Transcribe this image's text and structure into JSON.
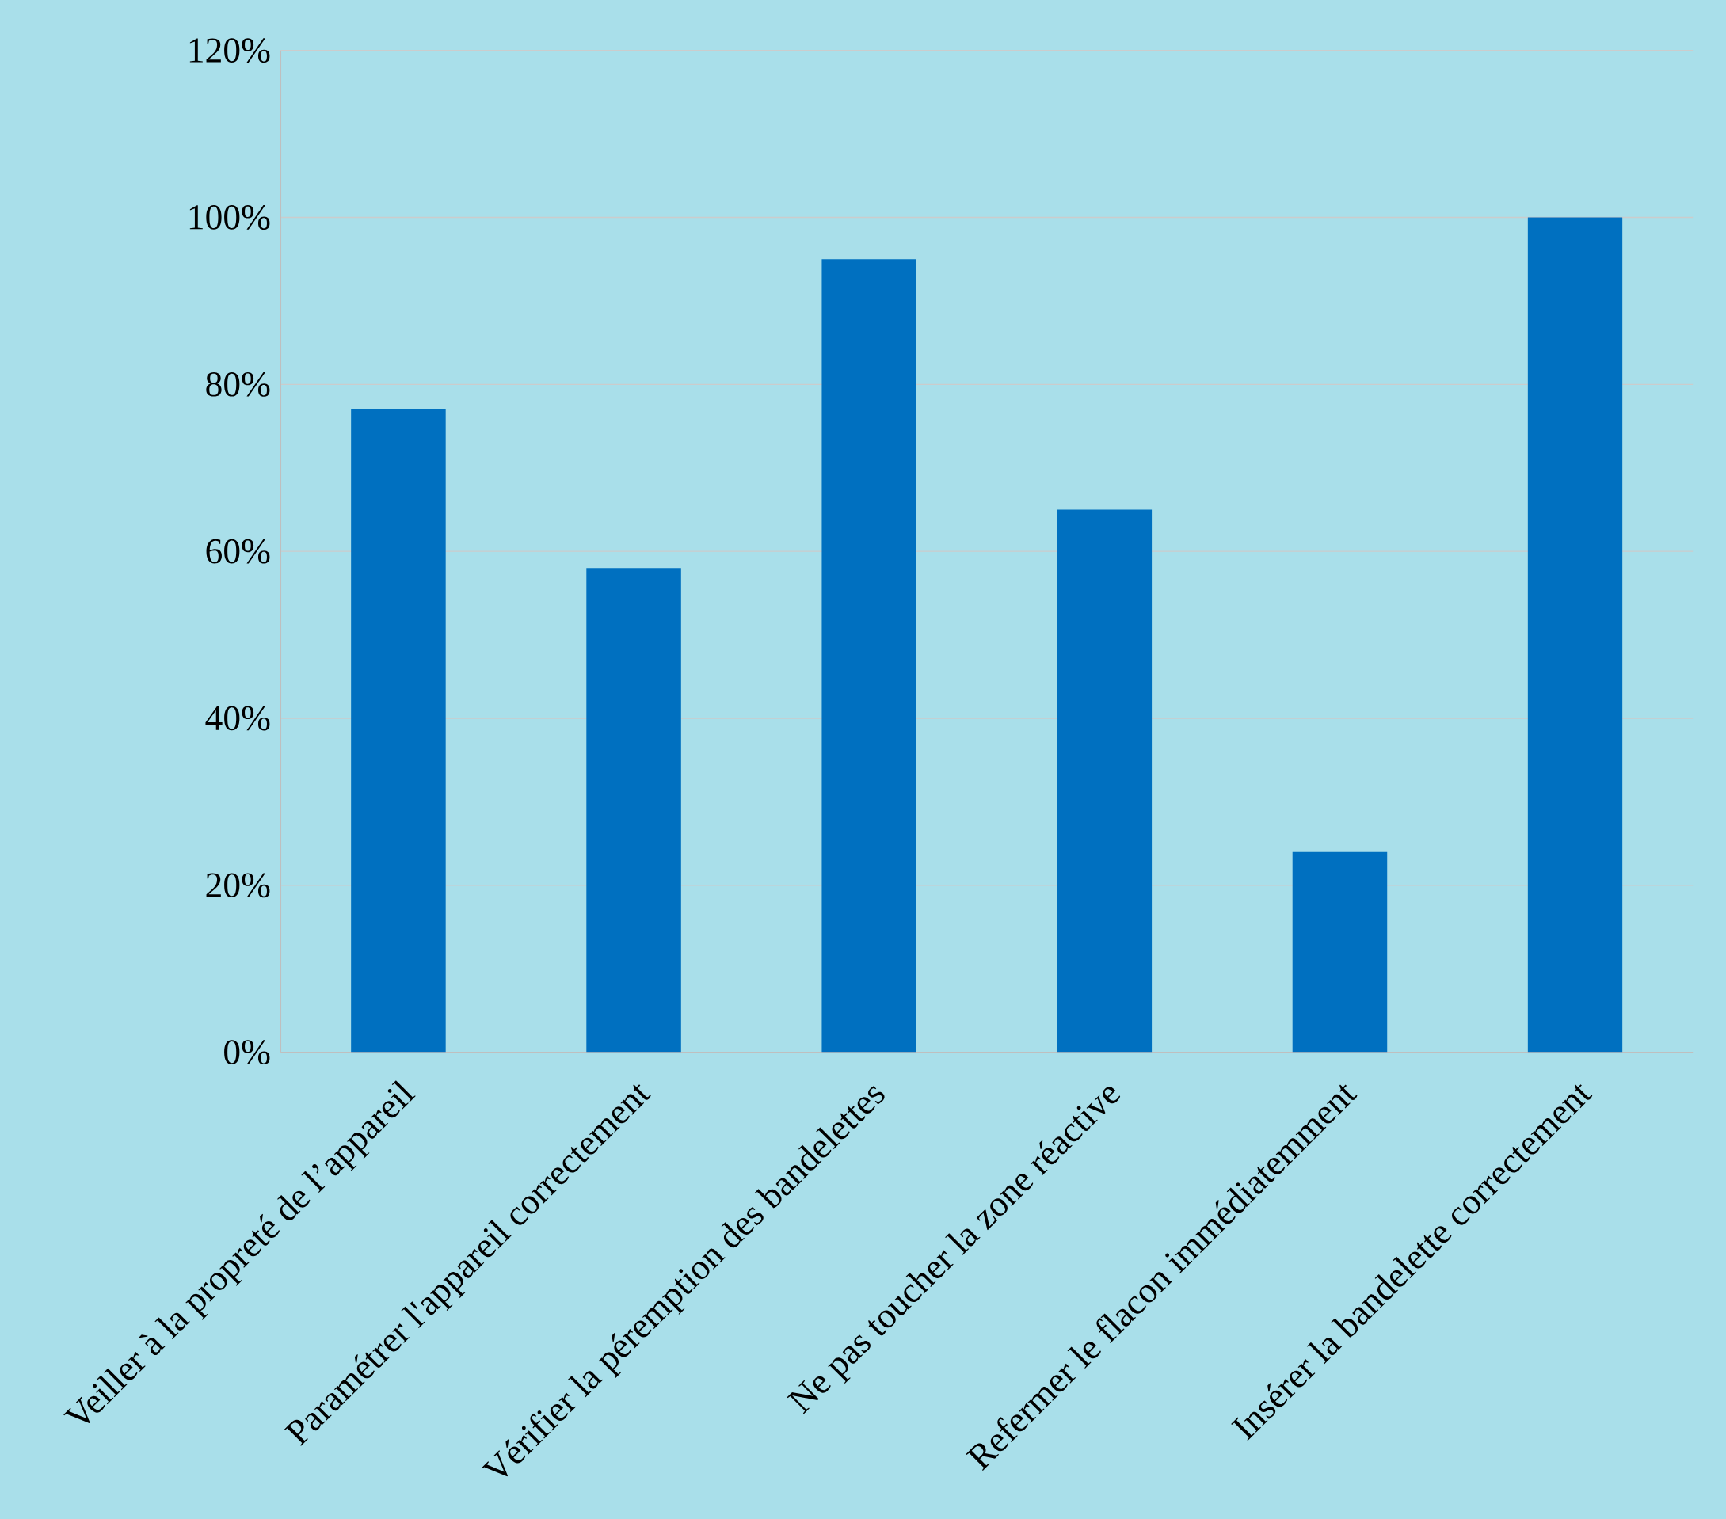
{
  "chart_data": {
    "type": "bar",
    "categories": [
      "Veiller à la propreté  de l’appareil",
      "Paramétrer l'appareil correctement",
      "Vérifier la péremption des bandelettes",
      "Ne pas toucher la zone réactive",
      "Refermer le flacon immédiatemment",
      "Insérer la bandelette correctement"
    ],
    "values": [
      77,
      58,
      95,
      65,
      24,
      100
    ],
    "color": "#0070c0",
    "ylim": [
      0,
      120
    ],
    "yticks": [
      {
        "value": 0,
        "label": "0%"
      },
      {
        "value": 20,
        "label": "20%"
      },
      {
        "value": 40,
        "label": "40%"
      },
      {
        "value": 60,
        "label": "60%"
      },
      {
        "value": 80,
        "label": "80%"
      },
      {
        "value": 100,
        "label": "100%"
      },
      {
        "value": 120,
        "label": "120%"
      }
    ],
    "grid": true
  }
}
